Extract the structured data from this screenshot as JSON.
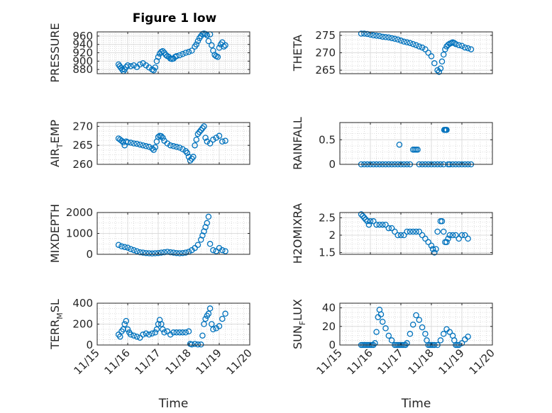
{
  "figure_title": "Figure 1 low",
  "chart_data": [
    {
      "type": "scatter",
      "ylabel": {
        "main": "PRESSURE",
        "sub": ""
      },
      "ylim": [
        870,
        970
      ],
      "yticks": [
        880,
        900,
        920,
        940,
        960
      ],
      "ytick_labels": [
        "880",
        "900",
        "920",
        "940",
        "960"
      ],
      "xlim": [
        0,
        5
      ],
      "xticks": [
        0,
        1,
        2,
        3,
        4,
        5
      ],
      "xtick_labels": [
        "",
        "",
        "",
        "",
        "",
        ""
      ],
      "xlabel": "",
      "grid": true,
      "x": [
        0.7,
        0.74,
        0.78,
        0.82,
        0.86,
        0.9,
        0.95,
        1.0,
        1.1,
        1.2,
        1.3,
        1.4,
        1.5,
        1.6,
        1.7,
        1.8,
        1.85,
        1.9,
        1.95,
        2.0,
        2.05,
        2.1,
        2.15,
        2.2,
        2.25,
        2.3,
        2.35,
        2.4,
        2.45,
        2.5,
        2.55,
        2.6,
        2.7,
        2.8,
        2.9,
        3.0,
        3.1,
        3.2,
        3.25,
        3.3,
        3.35,
        3.4,
        3.45,
        3.5,
        3.55,
        3.6,
        3.65,
        3.7,
        3.75,
        3.8,
        3.85,
        3.9,
        3.95,
        4.0,
        4.05,
        4.1,
        4.15,
        4.2
      ],
      "y": [
        892,
        888,
        884,
        880,
        876,
        880,
        886,
        890,
        888,
        890,
        886,
        892,
        895,
        890,
        885,
        880,
        878,
        885,
        900,
        910,
        918,
        922,
        924,
        920,
        915,
        912,
        910,
        906,
        905,
        906,
        910,
        912,
        914,
        917,
        920,
        922,
        925,
        935,
        940,
        948,
        955,
        960,
        965,
        966,
        965,
        962,
        948,
        964,
        938,
        925,
        915,
        912,
        910,
        932,
        940,
        945,
        935,
        938
      ]
    },
    {
      "type": "scatter",
      "ylabel": {
        "main": "THETA",
        "sub": ""
      },
      "ylim": [
        264,
        276
      ],
      "yticks": [
        265,
        270,
        275
      ],
      "ytick_labels": [
        "265",
        "270",
        "275"
      ],
      "xlim": [
        0,
        5
      ],
      "xticks": [
        0,
        1,
        2,
        3,
        4,
        5
      ],
      "xtick_labels": [
        "",
        "",
        "",
        "",
        "",
        ""
      ],
      "xlabel": "",
      "grid": true,
      "x": [
        0.7,
        0.8,
        0.9,
        1.0,
        1.1,
        1.2,
        1.3,
        1.4,
        1.5,
        1.6,
        1.7,
        1.8,
        1.9,
        2.0,
        2.1,
        2.2,
        2.3,
        2.4,
        2.5,
        2.6,
        2.7,
        2.8,
        2.9,
        3.0,
        3.1,
        3.2,
        3.25,
        3.3,
        3.35,
        3.4,
        3.45,
        3.5,
        3.55,
        3.6,
        3.65,
        3.7,
        3.75,
        3.8,
        3.9,
        4.0,
        4.1,
        4.2,
        4.3
      ],
      "y": [
        275.5,
        275.5,
        275.4,
        275.2,
        275.0,
        274.9,
        274.8,
        274.6,
        274.5,
        274.4,
        274.2,
        274.0,
        273.8,
        273.5,
        273.2,
        273.0,
        272.8,
        272.5,
        272.2,
        271.8,
        271.5,
        271.0,
        270.0,
        269.0,
        267.0,
        265.0,
        264.5,
        265.5,
        267.5,
        269.5,
        271.0,
        271.8,
        272.3,
        272.6,
        272.8,
        273.0,
        272.8,
        272.5,
        272.2,
        272.0,
        271.5,
        271.3,
        271.0
      ]
    },
    {
      "type": "scatter",
      "ylabel": {
        "main": "AIR",
        "sub": "T",
        "tail": "EMP"
      },
      "ylim": [
        260,
        271
      ],
      "yticks": [
        260,
        265,
        270
      ],
      "ytick_labels": [
        "260",
        "265",
        "270"
      ],
      "xlim": [
        0,
        5
      ],
      "xticks": [
        0,
        1,
        2,
        3,
        4,
        5
      ],
      "xtick_labels": [
        "",
        "",
        "",
        "",
        "",
        ""
      ],
      "xlabel": "",
      "grid": true,
      "x": [
        0.7,
        0.75,
        0.8,
        0.85,
        0.9,
        0.95,
        1.0,
        1.1,
        1.2,
        1.3,
        1.4,
        1.5,
        1.6,
        1.7,
        1.8,
        1.85,
        1.9,
        1.95,
        2.0,
        2.05,
        2.1,
        2.15,
        2.2,
        2.3,
        2.4,
        2.5,
        2.6,
        2.7,
        2.8,
        2.9,
        2.95,
        3.0,
        3.05,
        3.1,
        3.15,
        3.2,
        3.25,
        3.3,
        3.35,
        3.4,
        3.45,
        3.5,
        3.55,
        3.6,
        3.7,
        3.8,
        3.9,
        4.0,
        4.1,
        4.2
      ],
      "y": [
        266.8,
        266.5,
        266.2,
        265.8,
        265.0,
        266.0,
        265.8,
        265.7,
        265.5,
        265.4,
        265.2,
        265.0,
        264.8,
        264.6,
        264.2,
        263.8,
        264.5,
        266.0,
        267.2,
        267.5,
        267.4,
        267.0,
        266.2,
        265.5,
        265.0,
        264.8,
        264.6,
        264.4,
        264.0,
        263.5,
        263.0,
        262.0,
        261.0,
        261.5,
        262.0,
        265.0,
        266.5,
        268.0,
        268.5,
        269.0,
        269.5,
        270.0,
        267.0,
        266.0,
        265.5,
        266.5,
        267.0,
        267.5,
        266.0,
        266.2
      ]
    },
    {
      "type": "scatter",
      "ylabel": {
        "main": "RAINFALL",
        "sub": ""
      },
      "ylim": [
        0,
        0.85
      ],
      "yticks": [
        0,
        0.5
      ],
      "ytick_labels": [
        "0",
        "0.5"
      ],
      "xlim": [
        0,
        5
      ],
      "xticks": [
        0,
        1,
        2,
        3,
        4,
        5
      ],
      "xtick_labels": [
        "",
        "",
        "",
        "",
        "",
        ""
      ],
      "xlabel": "",
      "grid": true,
      "x": [
        0.7,
        0.8,
        0.9,
        1.0,
        1.1,
        1.2,
        1.3,
        1.4,
        1.5,
        1.6,
        1.7,
        1.8,
        1.9,
        2.0,
        2.1,
        2.2,
        2.3,
        2.4,
        2.45,
        2.5,
        2.55,
        2.6,
        2.7,
        2.8,
        2.9,
        3.0,
        3.1,
        3.2,
        3.3,
        3.4,
        3.42,
        3.45,
        3.48,
        3.5,
        3.55,
        3.6,
        3.7,
        3.8,
        3.9,
        4.0,
        4.1,
        4.2,
        4.3,
        1.95
      ],
      "y": [
        0,
        0,
        0,
        0,
        0,
        0,
        0,
        0,
        0,
        0,
        0,
        0,
        0,
        0,
        0,
        0,
        0,
        0.3,
        0.3,
        0.3,
        0.3,
        0,
        0,
        0,
        0,
        0,
        0,
        0,
        0,
        0,
        0.7,
        0.7,
        0.7,
        0.7,
        0,
        0,
        0,
        0,
        0,
        0,
        0,
        0,
        0,
        0.4
      ]
    },
    {
      "type": "scatter",
      "ylabel": {
        "main": "MIXDEPTH",
        "sub": ""
      },
      "ylim": [
        0,
        2000
      ],
      "yticks": [
        0,
        1000,
        2000
      ],
      "ytick_labels": [
        "0",
        "1000",
        "2000"
      ],
      "xlim": [
        0,
        5
      ],
      "xticks": [
        0,
        1,
        2,
        3,
        4,
        5
      ],
      "xtick_labels": [
        "",
        "",
        "",
        "",
        "",
        ""
      ],
      "xlabel": "",
      "grid": true,
      "x": [
        0.7,
        0.8,
        0.9,
        1.0,
        1.1,
        1.2,
        1.3,
        1.4,
        1.5,
        1.6,
        1.7,
        1.8,
        1.9,
        2.0,
        2.1,
        2.2,
        2.3,
        2.4,
        2.5,
        2.6,
        2.7,
        2.8,
        2.9,
        3.0,
        3.1,
        3.2,
        3.3,
        3.4,
        3.45,
        3.5,
        3.55,
        3.6,
        3.65,
        3.7,
        3.8,
        3.9,
        4.0,
        4.1,
        4.2
      ],
      "y": [
        450,
        380,
        350,
        320,
        250,
        200,
        150,
        100,
        80,
        60,
        50,
        40,
        50,
        60,
        80,
        100,
        120,
        100,
        80,
        60,
        50,
        60,
        80,
        120,
        200,
        300,
        450,
        700,
        900,
        1100,
        1300,
        1500,
        1800,
        500,
        200,
        150,
        300,
        200,
        150
      ]
    },
    {
      "type": "scatter",
      "ylabel": {
        "main": "H2OMIXRA",
        "sub": ""
      },
      "ylim": [
        1.45,
        2.65
      ],
      "yticks": [
        1.5,
        2,
        2.5
      ],
      "ytick_labels": [
        "1.5",
        "2",
        "2.5"
      ],
      "xlim": [
        0,
        5
      ],
      "xticks": [
        0,
        1,
        2,
        3,
        4,
        5
      ],
      "xtick_labels": [
        "",
        "",
        "",
        "",
        "",
        ""
      ],
      "xlabel": "",
      "grid": true,
      "x": [
        0.7,
        0.75,
        0.8,
        0.85,
        0.9,
        0.95,
        1.0,
        1.1,
        1.2,
        1.3,
        1.4,
        1.5,
        1.6,
        1.7,
        1.8,
        1.9,
        2.0,
        2.1,
        2.2,
        2.3,
        2.4,
        2.5,
        2.6,
        2.7,
        2.8,
        2.9,
        3.0,
        3.05,
        3.1,
        3.15,
        3.2,
        3.3,
        3.35,
        3.4,
        3.45,
        3.5,
        3.55,
        3.6,
        3.7,
        3.8,
        3.9,
        4.0,
        4.1,
        4.2
      ],
      "y": [
        2.6,
        2.55,
        2.5,
        2.45,
        2.4,
        2.3,
        2.4,
        2.4,
        2.3,
        2.3,
        2.3,
        2.3,
        2.2,
        2.2,
        2.1,
        2.0,
        2.0,
        2.0,
        2.1,
        2.1,
        2.1,
        2.1,
        2.1,
        2.0,
        1.9,
        1.8,
        1.7,
        1.6,
        1.5,
        1.6,
        2.1,
        2.4,
        2.4,
        2.1,
        1.8,
        1.8,
        1.9,
        2.0,
        2.0,
        2.0,
        1.9,
        2.0,
        2.0,
        1.9
      ]
    },
    {
      "type": "scatter",
      "ylabel": {
        "main": "TERR",
        "sub": "M",
        "tail": "SL"
      },
      "ylim": [
        0,
        400
      ],
      "yticks": [
        0,
        200,
        400
      ],
      "ytick_labels": [
        "0",
        "200",
        "400"
      ],
      "xlim": [
        0,
        5
      ],
      "xticks": [
        0,
        1,
        2,
        3,
        4,
        5
      ],
      "xtick_labels": [
        "11/15",
        "11/16",
        "11/17",
        "11/18",
        "11/19",
        "11/20"
      ],
      "xlabel": "Time",
      "grid": true,
      "x": [
        0.7,
        0.75,
        0.8,
        0.85,
        0.9,
        0.95,
        1.0,
        1.05,
        1.1,
        1.2,
        1.3,
        1.4,
        1.5,
        1.6,
        1.7,
        1.8,
        1.9,
        1.95,
        2.0,
        2.05,
        2.1,
        2.15,
        2.2,
        2.3,
        2.4,
        2.5,
        2.6,
        2.7,
        2.8,
        2.9,
        3.0,
        3.05,
        3.1,
        3.2,
        3.3,
        3.4,
        3.45,
        3.5,
        3.55,
        3.6,
        3.65,
        3.7,
        3.75,
        3.8,
        3.9,
        4.0,
        4.1,
        4.2
      ],
      "y": [
        100,
        80,
        130,
        150,
        200,
        230,
        150,
        120,
        100,
        90,
        80,
        70,
        100,
        110,
        100,
        110,
        120,
        150,
        200,
        240,
        200,
        150,
        120,
        130,
        100,
        120,
        120,
        120,
        120,
        120,
        130,
        10,
        5,
        10,
        5,
        5,
        90,
        200,
        250,
        280,
        300,
        350,
        200,
        150,
        160,
        180,
        250,
        300
      ]
    },
    {
      "type": "scatter",
      "ylabel": {
        "main": "SUN",
        "sub": "F",
        "tail": "LUX"
      },
      "ylim": [
        0,
        45
      ],
      "yticks": [
        0,
        20,
        40
      ],
      "ytick_labels": [
        "0",
        "20",
        "40"
      ],
      "xlim": [
        0,
        5
      ],
      "xticks": [
        0,
        1,
        2,
        3,
        4,
        5
      ],
      "xtick_labels": [
        "11/15",
        "11/16",
        "11/17",
        "11/18",
        "11/19",
        "11/20"
      ],
      "xlabel": "Time",
      "grid": true,
      "x": [
        0.7,
        0.75,
        0.8,
        0.85,
        0.9,
        0.95,
        1.0,
        1.05,
        1.1,
        1.15,
        1.2,
        1.25,
        1.3,
        1.35,
        1.4,
        1.5,
        1.6,
        1.7,
        1.8,
        1.85,
        1.9,
        1.95,
        2.0,
        2.05,
        2.1,
        2.15,
        2.2,
        2.3,
        2.4,
        2.5,
        2.6,
        2.7,
        2.8,
        2.85,
        2.9,
        2.95,
        3.0,
        3.05,
        3.1,
        3.2,
        3.3,
        3.4,
        3.5,
        3.6,
        3.7,
        3.75,
        3.8,
        3.85,
        3.9,
        4.0,
        4.1,
        4.2
      ],
      "y": [
        0,
        0,
        0,
        0,
        0,
        0,
        0,
        0,
        0,
        2,
        14,
        30,
        38,
        33,
        25,
        18,
        10,
        5,
        0,
        0,
        0,
        0,
        0,
        0,
        0,
        0,
        2,
        12,
        22,
        32,
        27,
        19,
        12,
        5,
        0,
        0,
        0,
        0,
        0,
        0,
        5,
        12,
        17,
        14,
        10,
        5,
        0,
        0,
        0,
        2,
        6,
        9
      ]
    }
  ]
}
